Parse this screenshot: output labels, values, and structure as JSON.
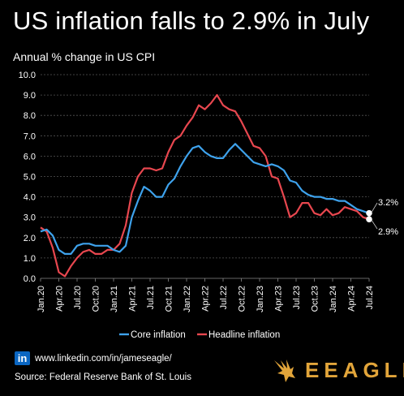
{
  "title": "US inflation falls to 2.9% in July",
  "subtitle": "Annual % change in US CPI",
  "footer": {
    "linkedin_badge": "in",
    "link": "www.linkedin.com/in/jameseagle/",
    "source": "Source: Federal Reserve Bank of St. Louis",
    "brand": "EEAGLI"
  },
  "colors": {
    "core": "#3ea2ec",
    "headline": "#e8474f",
    "accent": "#e2a53a",
    "background": "#000000"
  },
  "chart_data": {
    "type": "line",
    "ylim": [
      0,
      10
    ],
    "yticks": [
      "0.0",
      "1.0",
      "2.0",
      "3.0",
      "4.0",
      "5.0",
      "6.0",
      "7.0",
      "8.0",
      "9.0",
      "10.0"
    ],
    "xtick_labels": [
      "Jan.20",
      "Apr.20",
      "Jul.20",
      "Oct.20",
      "Jan.21",
      "Apr.21",
      "Jul.21",
      "Oct.21",
      "Jan.22",
      "Apr.22",
      "Jul.22",
      "Oct.22",
      "Jan.23",
      "Apr.23",
      "Jul.23",
      "Oct.23",
      "Jan.24",
      "Apr.24",
      "Jul.24"
    ],
    "grid": true,
    "legend": "bottom",
    "end_labels": [
      "3.2%",
      "2.9%"
    ],
    "series": [
      {
        "name": "Core inflation",
        "values": [
          2.3,
          2.4,
          2.1,
          1.4,
          1.2,
          1.2,
          1.6,
          1.7,
          1.7,
          1.6,
          1.6,
          1.6,
          1.4,
          1.3,
          1.6,
          3.0,
          3.8,
          4.5,
          4.3,
          4.0,
          4.0,
          4.6,
          4.9,
          5.5,
          6.0,
          6.4,
          6.5,
          6.2,
          6.0,
          5.9,
          5.9,
          6.3,
          6.6,
          6.3,
          6.0,
          5.7,
          5.6,
          5.5,
          5.6,
          5.5,
          5.3,
          4.8,
          4.7,
          4.3,
          4.1,
          4.0,
          4.0,
          3.9,
          3.9,
          3.8,
          3.8,
          3.6,
          3.4,
          3.3,
          3.2
        ]
      },
      {
        "name": "Headline inflation",
        "values": [
          2.5,
          2.3,
          1.5,
          0.3,
          0.1,
          0.6,
          1.0,
          1.3,
          1.4,
          1.2,
          1.2,
          1.4,
          1.4,
          1.7,
          2.6,
          4.2,
          5.0,
          5.4,
          5.4,
          5.3,
          5.4,
          6.2,
          6.8,
          7.0,
          7.5,
          7.9,
          8.5,
          8.3,
          8.6,
          9.0,
          8.5,
          8.3,
          8.2,
          7.7,
          7.1,
          6.5,
          6.4,
          6.0,
          5.0,
          4.9,
          4.0,
          3.0,
          3.2,
          3.7,
          3.7,
          3.2,
          3.1,
          3.4,
          3.1,
          3.2,
          3.5,
          3.4,
          3.3,
          3.0,
          2.9
        ]
      }
    ]
  }
}
